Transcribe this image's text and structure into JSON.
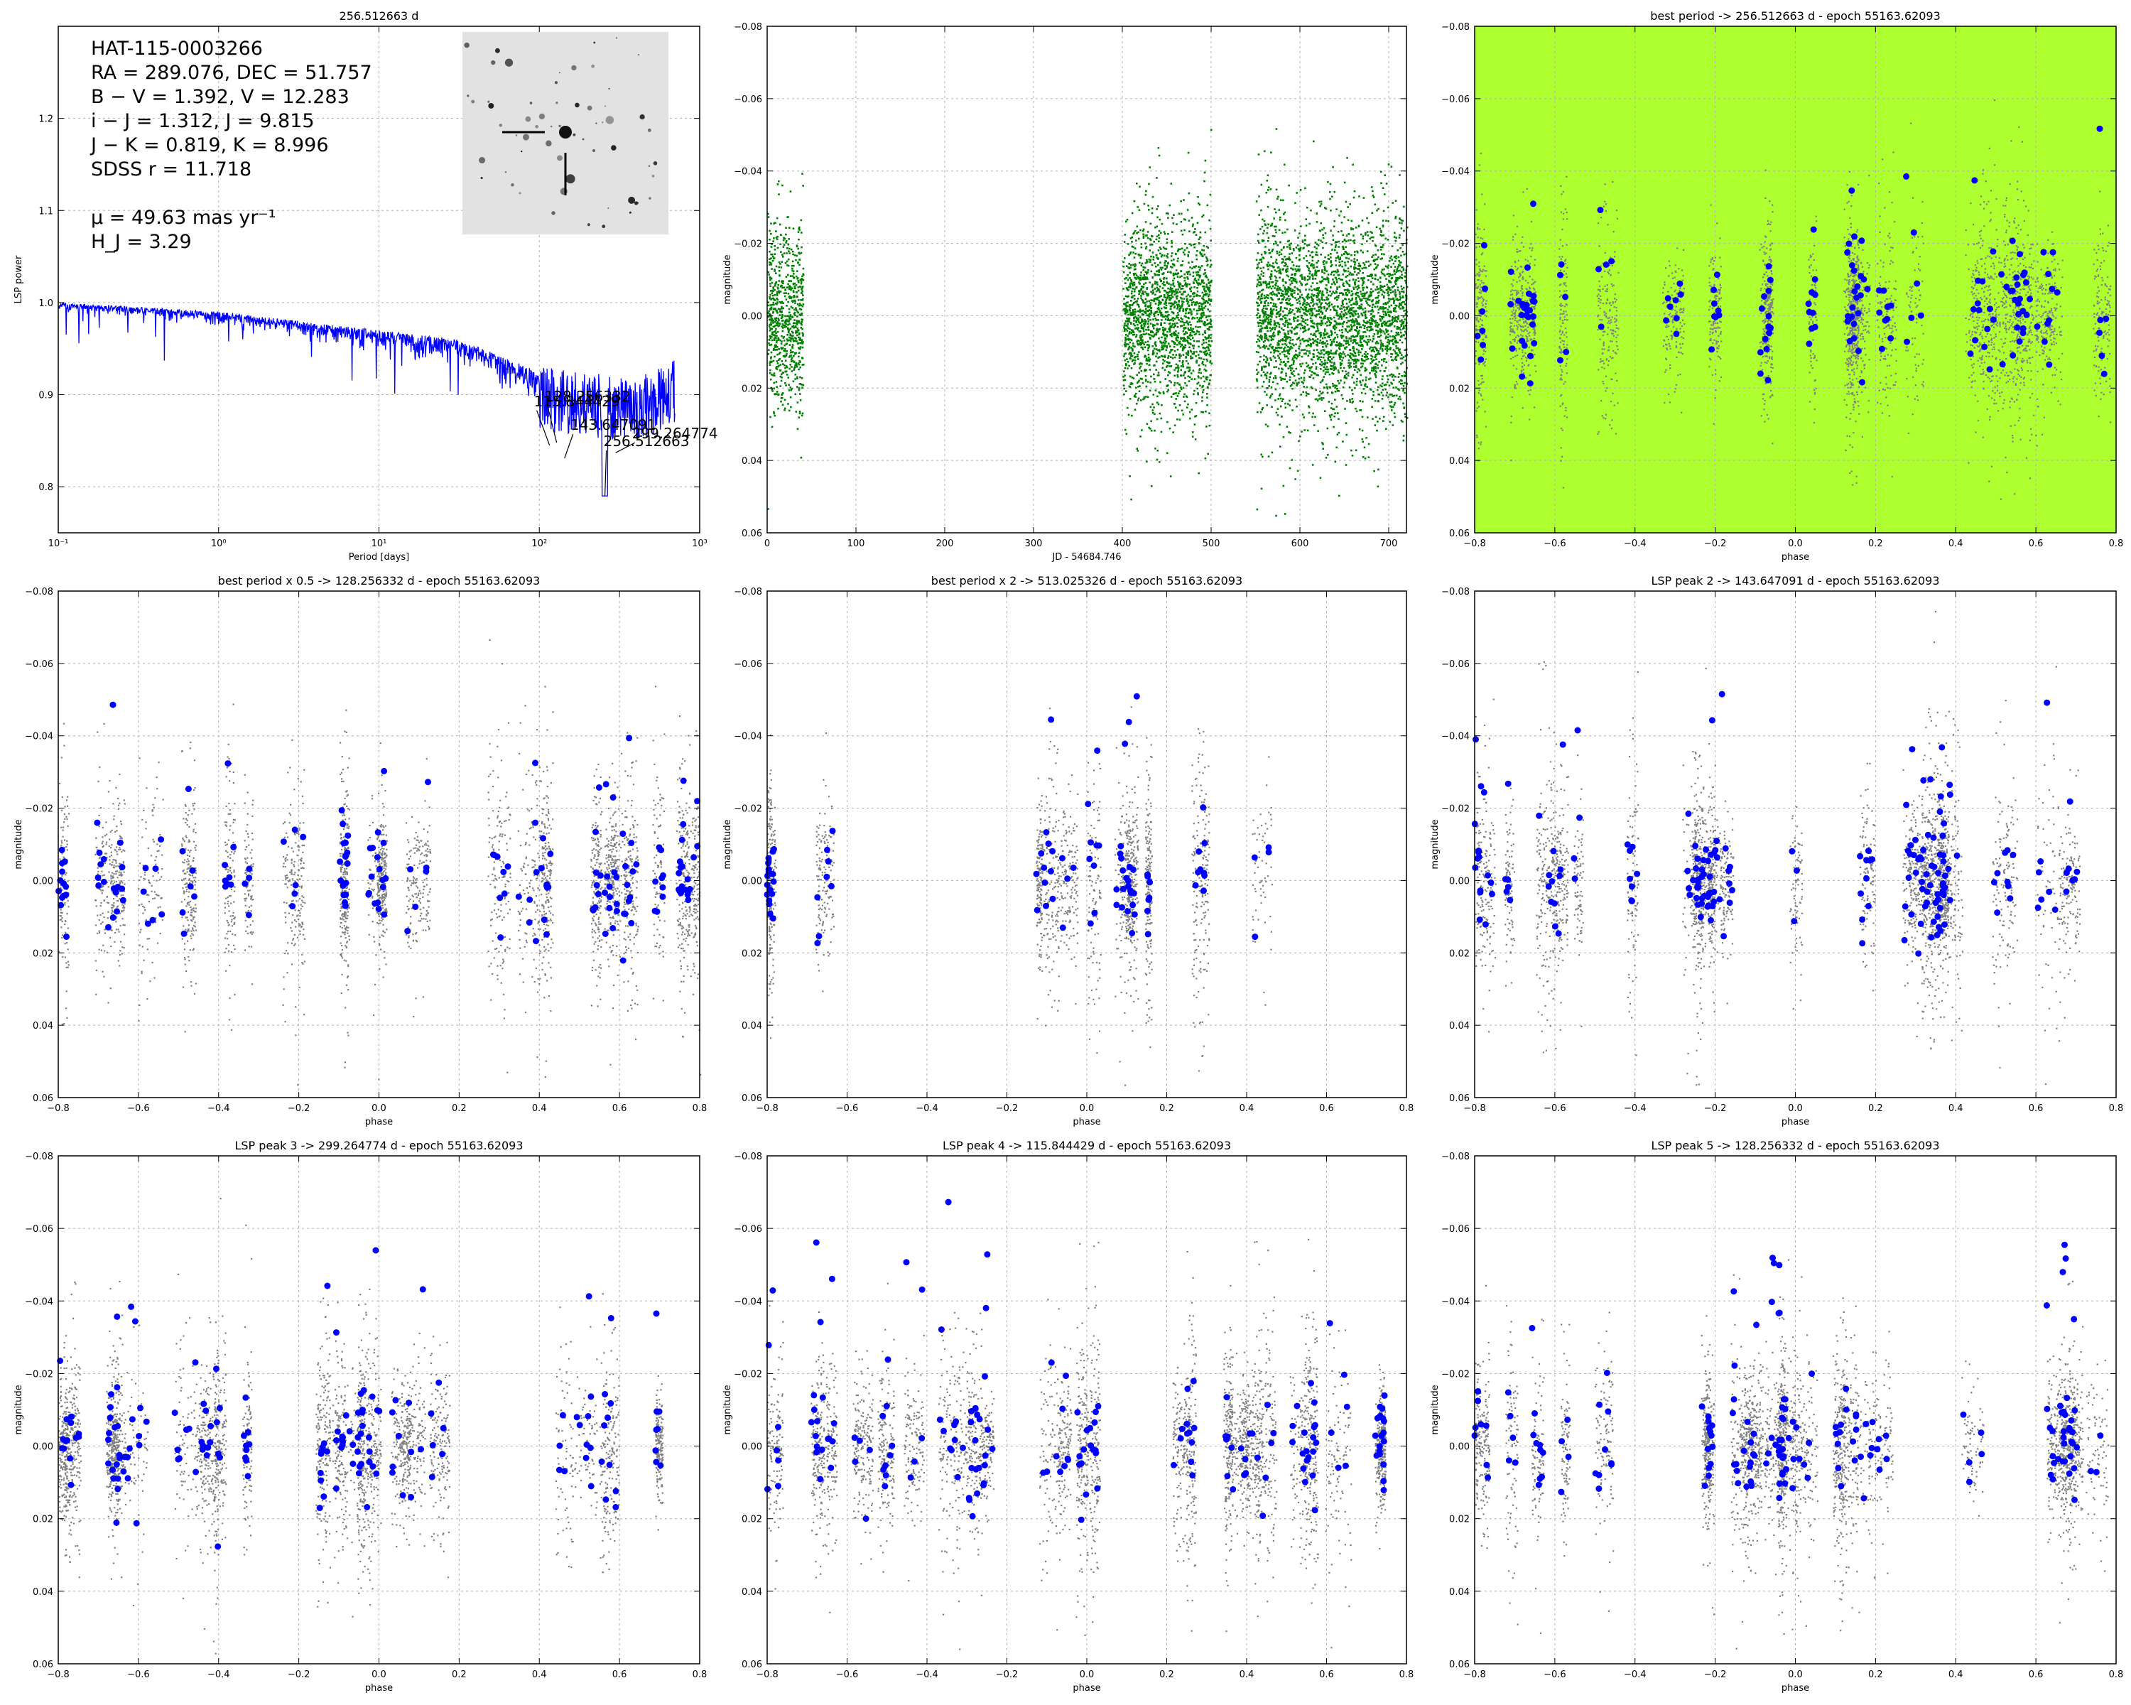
{
  "object": {
    "id": "HAT-115-0003266",
    "coords": "RA = 289.076, DEC = 51.757",
    "color1": "B − V = 1.392, V = 12.283",
    "color2": "i − J = 1.312, J = 9.815",
    "color3": "J − K = 0.819, K = 8.996",
    "sdss": "SDSS r = 11.718",
    "pm": "μ = 49.63 mas yr⁻¹",
    "hj": "H_J = 3.29"
  },
  "colors": {
    "periodogram": "#0000ff",
    "lightcurve": "#008000",
    "phased_points": "#808080",
    "binned_points": "#0000ff",
    "best_period_background": "#adff2f",
    "grid": "#b0b0b0"
  },
  "chart_data": [
    {
      "type": "line",
      "id": "periodogram",
      "title": "256.512663 d",
      "xlabel": "Period [days]",
      "ylabel": "LSP power",
      "xscale": "log",
      "xlim": [
        0.1,
        1000
      ],
      "ylim": [
        0.75,
        1.3
      ],
      "xticks": [
        "10⁻¹",
        "10⁰",
        "10¹",
        "10²",
        "10³"
      ],
      "yticks": [
        0.8,
        0.9,
        1.0,
        1.1,
        1.2
      ],
      "series": [
        {
          "name": "LSP",
          "x": [
            0.1,
            0.2,
            0.5,
            1,
            2,
            5,
            10,
            20,
            50,
            100,
            150,
            200,
            256.5,
            300,
            400,
            700
          ],
          "y": [
            1.0,
            0.998,
            0.995,
            0.99,
            0.98,
            0.97,
            0.96,
            0.95,
            0.935,
            0.9,
            0.88,
            0.9,
            0.79,
            0.86,
            0.92,
            0.94
          ]
        }
      ],
      "annotations": [
        {
          "label": "256.512663",
          "x": 256.512663,
          "y": 0.79
        },
        {
          "label": "143.647091",
          "x": 143.647091,
          "y": 0.831
        },
        {
          "label": "299.264774",
          "x": 299.264774,
          "y": 0.837
        },
        {
          "label": "115.844429",
          "x": 115.844429,
          "y": 0.845
        },
        {
          "label": "128.256332",
          "x": 128.256332,
          "y": 0.848
        }
      ]
    },
    {
      "type": "scatter",
      "id": "lightcurve",
      "title": "",
      "xlabel": "JD - 54684.746",
      "ylabel": "magnitude",
      "xlim": [
        0,
        720
      ],
      "ylim": [
        0.06,
        -0.08
      ],
      "xticks": [
        0,
        100,
        200,
        300,
        400,
        500,
        600,
        700
      ],
      "yticks": [
        -0.08,
        -0.06,
        -0.04,
        -0.02,
        0.0,
        0.02,
        0.04,
        0.06
      ],
      "segments": [
        {
          "x_start": 0,
          "x_end": 40,
          "mag_mean": 0.0,
          "mag_scatter": 0.012
        },
        {
          "x_start": 400,
          "x_end": 500,
          "mag_mean": 0.0,
          "mag_scatter": 0.013
        },
        {
          "x_start": 550,
          "x_end": 720,
          "mag_mean": 0.0,
          "mag_scatter": 0.014
        }
      ]
    },
    {
      "type": "scatter",
      "id": "phased-best",
      "title": "best period -> 256.512663 d - epoch 55163.62093",
      "period": 256.512663,
      "highlight": true,
      "xlabel": "phase",
      "ylabel": "magnitude",
      "xlim": [
        -0.8,
        0.8
      ],
      "ylim": [
        0.06,
        -0.08
      ],
      "xticks": [
        -0.8,
        -0.6,
        -0.4,
        -0.2,
        0.0,
        0.2,
        0.4,
        0.6,
        0.8
      ],
      "yticks": [
        -0.08,
        -0.06,
        -0.04,
        -0.02,
        0.0,
        0.02,
        0.04,
        0.06
      ]
    },
    {
      "type": "scatter",
      "id": "phased-half",
      "title": "best period x 0.5 -> 128.256332 d - epoch 55163.62093",
      "period": 128.256332,
      "highlight": false,
      "xlabel": "phase",
      "ylabel": "magnitude",
      "xlim": [
        -0.8,
        0.8
      ],
      "ylim": [
        0.06,
        -0.08
      ],
      "xticks": [
        -0.8,
        -0.6,
        -0.4,
        -0.2,
        0.0,
        0.2,
        0.4,
        0.6,
        0.8
      ],
      "yticks": [
        -0.08,
        -0.06,
        -0.04,
        -0.02,
        0.0,
        0.02,
        0.04,
        0.06
      ]
    },
    {
      "type": "scatter",
      "id": "phased-double",
      "title": "best period x 2 ->  513.025326 d - epoch 55163.62093",
      "period": 513.025326,
      "highlight": false,
      "phase_ranges": [
        [
          -0.8,
          -0.53
        ],
        [
          -0.15,
          0.47
        ]
      ],
      "xlabel": "phase",
      "ylabel": "magnitude",
      "xlim": [
        -0.8,
        0.8
      ],
      "ylim": [
        0.06,
        -0.08
      ],
      "xticks": [
        -0.8,
        -0.6,
        -0.4,
        -0.2,
        0.0,
        0.2,
        0.4,
        0.6,
        0.8
      ],
      "yticks": [
        -0.08,
        -0.06,
        -0.04,
        -0.02,
        0.0,
        0.02,
        0.04,
        0.06
      ]
    },
    {
      "type": "scatter",
      "id": "phased-peak2",
      "title": "LSP peak 2 -> 143.647091 d - epoch 55163.62093",
      "period": 143.647091,
      "highlight": false,
      "xlabel": "phase",
      "ylabel": "magnitude",
      "xlim": [
        -0.8,
        0.8
      ],
      "ylim": [
        0.06,
        -0.08
      ],
      "xticks": [
        -0.8,
        -0.6,
        -0.4,
        -0.2,
        0.0,
        0.2,
        0.4,
        0.6,
        0.8
      ],
      "yticks": [
        -0.08,
        -0.06,
        -0.04,
        -0.02,
        0.0,
        0.02,
        0.04,
        0.06
      ]
    },
    {
      "type": "scatter",
      "id": "phased-peak3",
      "title": "LSP peak 3 -> 299.264774 d - epoch 55163.62093",
      "period": 299.264774,
      "highlight": false,
      "xlabel": "phase",
      "ylabel": "magnitude",
      "xlim": [
        -0.8,
        0.8
      ],
      "ylim": [
        0.06,
        -0.08
      ],
      "xticks": [
        -0.8,
        -0.6,
        -0.4,
        -0.2,
        0.0,
        0.2,
        0.4,
        0.6,
        0.8
      ],
      "yticks": [
        -0.08,
        -0.06,
        -0.04,
        -0.02,
        0.0,
        0.02,
        0.04,
        0.06
      ]
    },
    {
      "type": "scatter",
      "id": "phased-peak4",
      "title": "LSP peak 4 -> 115.844429 d - epoch 55163.62093",
      "period": 115.844429,
      "highlight": false,
      "xlabel": "phase",
      "ylabel": "magnitude",
      "xlim": [
        -0.8,
        0.8
      ],
      "ylim": [
        0.06,
        -0.08
      ],
      "xticks": [
        -0.8,
        -0.6,
        -0.4,
        -0.2,
        0.0,
        0.2,
        0.4,
        0.6,
        0.8
      ],
      "yticks": [
        -0.08,
        -0.06,
        -0.04,
        -0.02,
        0.0,
        0.02,
        0.04,
        0.06
      ]
    },
    {
      "type": "scatter",
      "id": "phased-peak5",
      "title": "LSP peak 5 -> 128.256332 d - epoch 55163.62093",
      "period": 128.256332,
      "highlight": false,
      "xlabel": "phase",
      "ylabel": "magnitude",
      "xlim": [
        -0.8,
        0.8
      ],
      "ylim": [
        0.06,
        -0.08
      ],
      "xticks": [
        -0.8,
        -0.6,
        -0.4,
        -0.2,
        0.0,
        0.2,
        0.4,
        0.6,
        0.8
      ],
      "yticks": [
        -0.08,
        -0.06,
        -0.04,
        -0.02,
        0.0,
        0.02,
        0.04,
        0.06
      ]
    }
  ]
}
